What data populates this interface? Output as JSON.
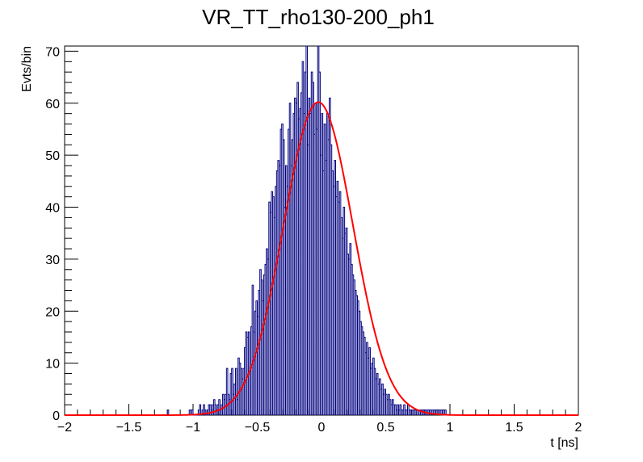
{
  "chart_data": {
    "type": "histogram",
    "title": "VR_TT_rho130-200_ph1",
    "xlabel": "t [ns]",
    "ylabel": "Evts/bin",
    "xlim": [
      -2,
      2
    ],
    "ylim": [
      0,
      71
    ],
    "x_ticks": [
      -2,
      -1.5,
      -1,
      -0.5,
      0,
      0.5,
      1,
      1.5,
      2
    ],
    "x_tick_labels": [
      "−2",
      "−1.5",
      "−1",
      "−0.5",
      "0",
      "0.5",
      "1",
      "1.5",
      "2"
    ],
    "y_ticks": [
      0,
      10,
      20,
      30,
      40,
      50,
      60,
      70
    ],
    "y_tick_labels": [
      "0",
      "10",
      "20",
      "30",
      "40",
      "50",
      "60",
      "70"
    ],
    "grid": false,
    "legend": "none",
    "histogram": {
      "bin_width": 0.01,
      "bin_low_edges": [
        -1.2,
        -1.03,
        -1.02,
        -1.01,
        -0.96,
        -0.95,
        -0.93,
        -0.92,
        -0.91,
        -0.89,
        -0.88,
        -0.87,
        -0.86,
        -0.85,
        -0.84,
        -0.83,
        -0.82,
        -0.81,
        -0.8,
        -0.79,
        -0.78,
        -0.77,
        -0.76,
        -0.75,
        -0.74,
        -0.73,
        -0.72,
        -0.71,
        -0.7,
        -0.69,
        -0.68,
        -0.67,
        -0.66,
        -0.65,
        -0.64,
        -0.63,
        -0.62,
        -0.61,
        -0.6,
        -0.59,
        -0.58,
        -0.57,
        -0.56,
        -0.55,
        -0.54,
        -0.53,
        -0.52,
        -0.51,
        -0.5,
        -0.49,
        -0.48,
        -0.47,
        -0.46,
        -0.45,
        -0.44,
        -0.43,
        -0.42,
        -0.41,
        -0.4,
        -0.39,
        -0.38,
        -0.37,
        -0.36,
        -0.35,
        -0.34,
        -0.33,
        -0.32,
        -0.31,
        -0.3,
        -0.29,
        -0.28,
        -0.27,
        -0.26,
        -0.25,
        -0.24,
        -0.23,
        -0.22,
        -0.21,
        -0.2,
        -0.19,
        -0.18,
        -0.17,
        -0.16,
        -0.15,
        -0.14,
        -0.13,
        -0.12,
        -0.11,
        -0.1,
        -0.09,
        -0.08,
        -0.07,
        -0.06,
        -0.05,
        -0.04,
        -0.03,
        -0.02,
        -0.01,
        0.0,
        0.01,
        0.02,
        0.03,
        0.04,
        0.05,
        0.06,
        0.07,
        0.08,
        0.09,
        0.1,
        0.11,
        0.12,
        0.13,
        0.14,
        0.15,
        0.16,
        0.17,
        0.18,
        0.19,
        0.2,
        0.21,
        0.22,
        0.23,
        0.24,
        0.25,
        0.26,
        0.27,
        0.28,
        0.29,
        0.3,
        0.31,
        0.32,
        0.33,
        0.34,
        0.35,
        0.36,
        0.37,
        0.38,
        0.39,
        0.4,
        0.41,
        0.42,
        0.43,
        0.44,
        0.45,
        0.46,
        0.47,
        0.48,
        0.49,
        0.5,
        0.51,
        0.52,
        0.53,
        0.54,
        0.55,
        0.56,
        0.57,
        0.58,
        0.59,
        0.6,
        0.61,
        0.62,
        0.63,
        0.64,
        0.65,
        0.66,
        0.67,
        0.68,
        0.69,
        0.7,
        0.71,
        0.72,
        0.73,
        0.74,
        0.75,
        0.76,
        0.77,
        0.78,
        0.79,
        0.8,
        0.81,
        0.82,
        0.83,
        0.84,
        0.85,
        0.86,
        0.87,
        0.88,
        0.89,
        0.9,
        0.91,
        0.92,
        0.93,
        0.94,
        0.95,
        0.96,
        0.97,
        0.98,
        0.99,
        1.03,
        1.04,
        1.05,
        1.07,
        1.08,
        1.22
      ],
      "counts": [
        1,
        1,
        1,
        1,
        1,
        2,
        1,
        2,
        1,
        1,
        2,
        2,
        1,
        2,
        3,
        2,
        1,
        2,
        3,
        1,
        2,
        4,
        3,
        4,
        9,
        4,
        3,
        8,
        9,
        4,
        6,
        9,
        3,
        11,
        10,
        9,
        7,
        9,
        13,
        16,
        15,
        16,
        9,
        17,
        25,
        16,
        20,
        22,
        19,
        24,
        28,
        26,
        22,
        27,
        29,
        32,
        30,
        41,
        39,
        43,
        42,
        38,
        44,
        47,
        49,
        48,
        55,
        56,
        53,
        40,
        48,
        44,
        55,
        60,
        48,
        53,
        58,
        61,
        60,
        64,
        57,
        59,
        62,
        68,
        58,
        66,
        71,
        52,
        61,
        58,
        66,
        64,
        54,
        60,
        55,
        72,
        66,
        50,
        58,
        47,
        56,
        49,
        58,
        53,
        61,
        52,
        47,
        44,
        49,
        42,
        45,
        41,
        43,
        38,
        34,
        40,
        35,
        36,
        31,
        30,
        33,
        29,
        27,
        26,
        24,
        23,
        22,
        20,
        18,
        17,
        16,
        15,
        12,
        14,
        11,
        13,
        9,
        10,
        11,
        9,
        7,
        8,
        6,
        7,
        5,
        6,
        4,
        5,
        4,
        3,
        4,
        3,
        2,
        3,
        2,
        2,
        1,
        2,
        1,
        2,
        1,
        1,
        2,
        1,
        1,
        2,
        1,
        1,
        1,
        1,
        1,
        1,
        1,
        1,
        1,
        1,
        1,
        1,
        1,
        1,
        1,
        1,
        1,
        1,
        1,
        1,
        1,
        1,
        1,
        1,
        1,
        1,
        1,
        1,
        1
      ],
      "color": "#000080"
    },
    "fit": {
      "name": "gaus",
      "amplitude": 60.2,
      "mean": -0.025,
      "sigma": 0.27,
      "color": "#ff0000"
    }
  }
}
